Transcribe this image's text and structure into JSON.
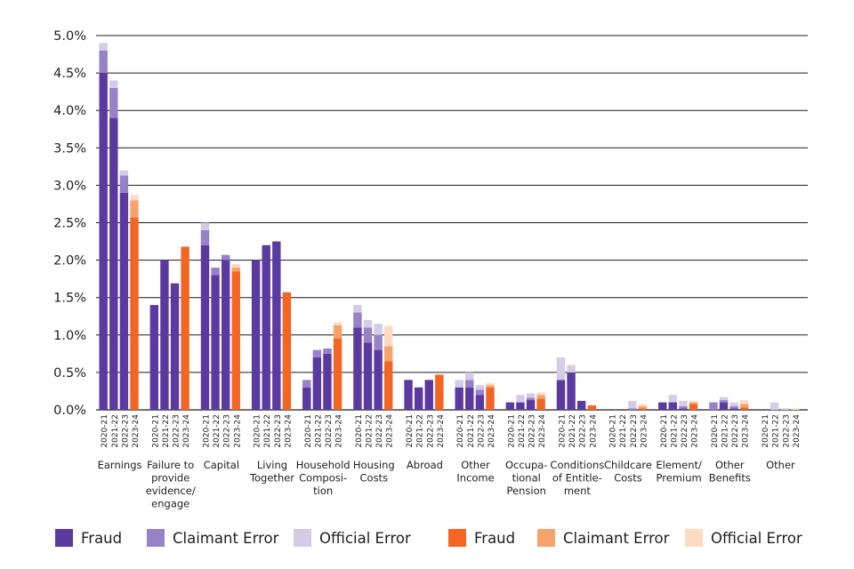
{
  "chart_data": {
    "type": "bar",
    "stacked": true,
    "y_axis": {
      "ticks": [
        "0.0%",
        "0.5%",
        "1.0%",
        "1.5%",
        "2.0%",
        "2.5%",
        "3.0%",
        "3.5%",
        "4.0%",
        "4.5%",
        "5.0%"
      ],
      "ylim": [
        0,
        5
      ],
      "unit": "%",
      "grid": true
    },
    "year_labels": [
      "2020-21",
      "2021-22",
      "2022-23",
      "2023-24"
    ],
    "groups": [
      {
        "label": "Earnings",
        "bars": [
          {
            "year": "2020-21",
            "palette": "purple",
            "fraud": 4.5,
            "claimant_error": 0.3,
            "official_error": 0.1
          },
          {
            "year": "2021-22",
            "palette": "purple",
            "fraud": 3.9,
            "claimant_error": 0.4,
            "official_error": 0.1
          },
          {
            "year": "2022-23",
            "palette": "purple",
            "fraud": 2.9,
            "claimant_error": 0.23,
            "official_error": 0.07
          },
          {
            "year": "2023-24",
            "palette": "orange",
            "fraud": 2.57,
            "claimant_error": 0.23,
            "official_error": 0.07
          }
        ]
      },
      {
        "label": "Failure to provide evidence/ engage",
        "bars": [
          {
            "year": "2020-21",
            "palette": "purple",
            "fraud": 1.4,
            "claimant_error": 0,
            "official_error": 0
          },
          {
            "year": "2021-22",
            "palette": "purple",
            "fraud": 2.0,
            "claimant_error": 0,
            "official_error": 0
          },
          {
            "year": "2022-23",
            "palette": "purple",
            "fraud": 1.69,
            "claimant_error": 0,
            "official_error": 0
          },
          {
            "year": "2023-24",
            "palette": "orange",
            "fraud": 2.18,
            "claimant_error": 0,
            "official_error": 0
          }
        ]
      },
      {
        "label": "Capital",
        "bars": [
          {
            "year": "2020-21",
            "palette": "purple",
            "fraud": 2.2,
            "claimant_error": 0.2,
            "official_error": 0.1
          },
          {
            "year": "2021-22",
            "palette": "purple",
            "fraud": 1.8,
            "claimant_error": 0.1,
            "official_error": 0
          },
          {
            "year": "2022-23",
            "palette": "purple",
            "fraud": 2.0,
            "claimant_error": 0.07,
            "official_error": 0
          },
          {
            "year": "2023-24",
            "palette": "orange",
            "fraud": 1.85,
            "claimant_error": 0.05,
            "official_error": 0.05
          }
        ]
      },
      {
        "label": "Living Together",
        "bars": [
          {
            "year": "2020-21",
            "palette": "purple",
            "fraud": 2.0,
            "claimant_error": 0,
            "official_error": 0
          },
          {
            "year": "2021-22",
            "palette": "purple",
            "fraud": 2.2,
            "claimant_error": 0,
            "official_error": 0
          },
          {
            "year": "2022-23",
            "palette": "purple",
            "fraud": 2.25,
            "claimant_error": 0,
            "official_error": 0
          },
          {
            "year": "2023-24",
            "palette": "orange",
            "fraud": 1.57,
            "claimant_error": 0,
            "official_error": 0
          }
        ]
      },
      {
        "label": "Household Composi- tion",
        "bars": [
          {
            "year": "2020-21",
            "palette": "purple",
            "fraud": 0.3,
            "claimant_error": 0.1,
            "official_error": 0
          },
          {
            "year": "2021-22",
            "palette": "purple",
            "fraud": 0.7,
            "claimant_error": 0.1,
            "official_error": 0
          },
          {
            "year": "2022-23",
            "palette": "purple",
            "fraud": 0.75,
            "claimant_error": 0.07,
            "official_error": 0
          },
          {
            "year": "2023-24",
            "palette": "orange",
            "fraud": 0.95,
            "claimant_error": 0.18,
            "official_error": 0.04
          }
        ]
      },
      {
        "label": "Housing Costs",
        "bars": [
          {
            "year": "2020-21",
            "palette": "purple",
            "fraud": 1.1,
            "claimant_error": 0.2,
            "official_error": 0.1
          },
          {
            "year": "2021-22",
            "palette": "purple",
            "fraud": 0.9,
            "claimant_error": 0.2,
            "official_error": 0.1
          },
          {
            "year": "2022-23",
            "palette": "purple",
            "fraud": 0.8,
            "claimant_error": 0.2,
            "official_error": 0.15
          },
          {
            "year": "2023-24",
            "palette": "orange",
            "fraud": 0.65,
            "claimant_error": 0.2,
            "official_error": 0.27
          }
        ]
      },
      {
        "label": "Abroad",
        "bars": [
          {
            "year": "2020-21",
            "palette": "purple",
            "fraud": 0.4,
            "claimant_error": 0,
            "official_error": 0
          },
          {
            "year": "2021-22",
            "palette": "purple",
            "fraud": 0.3,
            "claimant_error": 0,
            "official_error": 0
          },
          {
            "year": "2022-23",
            "palette": "purple",
            "fraud": 0.4,
            "claimant_error": 0,
            "official_error": 0
          },
          {
            "year": "2023-24",
            "palette": "orange",
            "fraud": 0.47,
            "claimant_error": 0,
            "official_error": 0
          }
        ]
      },
      {
        "label": "Other Income",
        "bars": [
          {
            "year": "2020-21",
            "palette": "purple",
            "fraud": 0.3,
            "claimant_error": 0,
            "official_error": 0.1
          },
          {
            "year": "2021-22",
            "palette": "purple",
            "fraud": 0.3,
            "claimant_error": 0.1,
            "official_error": 0.1
          },
          {
            "year": "2022-23",
            "palette": "purple",
            "fraud": 0.2,
            "claimant_error": 0.07,
            "official_error": 0.06
          },
          {
            "year": "2023-24",
            "palette": "orange",
            "fraud": 0.3,
            "claimant_error": 0.03,
            "official_error": 0.03
          }
        ]
      },
      {
        "label": "Occupa- tional Pension",
        "bars": [
          {
            "year": "2020-21",
            "palette": "purple",
            "fraud": 0.1,
            "claimant_error": 0,
            "official_error": 0
          },
          {
            "year": "2021-22",
            "palette": "purple",
            "fraud": 0.1,
            "claimant_error": 0,
            "official_error": 0.1
          },
          {
            "year": "2022-23",
            "palette": "purple",
            "fraud": 0.13,
            "claimant_error": 0.03,
            "official_error": 0.06
          },
          {
            "year": "2023-24",
            "palette": "orange",
            "fraud": 0.15,
            "claimant_error": 0.05,
            "official_error": 0.03
          }
        ]
      },
      {
        "label": "Conditions of Entitle- ment",
        "bars": [
          {
            "year": "2020-21",
            "palette": "purple",
            "fraud": 0.4,
            "claimant_error": 0,
            "official_error": 0.3
          },
          {
            "year": "2021-22",
            "palette": "purple",
            "fraud": 0.5,
            "claimant_error": 0,
            "official_error": 0.1
          },
          {
            "year": "2022-23",
            "palette": "purple",
            "fraud": 0.12,
            "claimant_error": 0,
            "official_error": 0
          },
          {
            "year": "2023-24",
            "palette": "orange",
            "fraud": 0.06,
            "claimant_error": 0,
            "official_error": 0
          }
        ]
      },
      {
        "label": "Childcare Costs",
        "bars": [
          {
            "year": "2020-21",
            "palette": "purple",
            "fraud": 0,
            "claimant_error": 0,
            "official_error": 0
          },
          {
            "year": "2021-22",
            "palette": "purple",
            "fraud": 0,
            "claimant_error": 0,
            "official_error": 0
          },
          {
            "year": "2022-23",
            "palette": "purple",
            "fraud": 0,
            "claimant_error": 0.02,
            "official_error": 0.1
          },
          {
            "year": "2023-24",
            "palette": "orange",
            "fraud": 0.02,
            "claimant_error": 0.03,
            "official_error": 0.03
          }
        ]
      },
      {
        "label": "Element/ Premium",
        "bars": [
          {
            "year": "2020-21",
            "palette": "purple",
            "fraud": 0.1,
            "claimant_error": 0,
            "official_error": 0
          },
          {
            "year": "2021-22",
            "palette": "purple",
            "fraud": 0.1,
            "claimant_error": 0,
            "official_error": 0.1
          },
          {
            "year": "2022-23",
            "palette": "purple",
            "fraud": 0.02,
            "claimant_error": 0.03,
            "official_error": 0.07
          },
          {
            "year": "2023-24",
            "palette": "orange",
            "fraud": 0.08,
            "claimant_error": 0.02,
            "official_error": 0.02
          }
        ]
      },
      {
        "label": "Other Benefits",
        "bars": [
          {
            "year": "2020-21",
            "palette": "purple",
            "fraud": 0,
            "claimant_error": 0.1,
            "official_error": 0
          },
          {
            "year": "2021-22",
            "palette": "purple",
            "fraud": 0.1,
            "claimant_error": 0.03,
            "official_error": 0.04
          },
          {
            "year": "2022-23",
            "palette": "purple",
            "fraud": 0.02,
            "claimant_error": 0.03,
            "official_error": 0.05
          },
          {
            "year": "2023-24",
            "palette": "orange",
            "fraud": 0.03,
            "claimant_error": 0.05,
            "official_error": 0.05
          }
        ]
      },
      {
        "label": "Other",
        "bars": [
          {
            "year": "2020-21",
            "palette": "purple",
            "fraud": 0,
            "claimant_error": 0,
            "official_error": 0
          },
          {
            "year": "2021-22",
            "palette": "purple",
            "fraud": 0,
            "claimant_error": 0,
            "official_error": 0.1
          },
          {
            "year": "2022-23",
            "palette": "purple",
            "fraud": 0,
            "claimant_error": 0,
            "official_error": 0.02
          },
          {
            "year": "2023-24",
            "palette": "orange",
            "fraud": 0,
            "claimant_error": 0,
            "official_error": 0.02
          }
        ]
      }
    ],
    "colors": {
      "purple": {
        "fraud": "#5b3aa0",
        "claimant_error": "#9781c7",
        "official_error": "#d4cbe7"
      },
      "orange": {
        "fraud": "#f26522",
        "claimant_error": "#f7a36b",
        "official_error": "#fbdcc3"
      }
    },
    "legend": [
      {
        "label": "Fraud",
        "palette": "purple",
        "component": "fraud"
      },
      {
        "label": "Claimant Error",
        "palette": "purple",
        "component": "claimant_error"
      },
      {
        "label": "Official Error",
        "palette": "purple",
        "component": "official_error"
      },
      {
        "label": "Fraud",
        "palette": "orange",
        "component": "fraud"
      },
      {
        "label": "Claimant Error",
        "palette": "orange",
        "component": "claimant_error"
      },
      {
        "label": "Official Error",
        "palette": "orange",
        "component": "official_error"
      }
    ],
    "legend_position": "bottom"
  }
}
